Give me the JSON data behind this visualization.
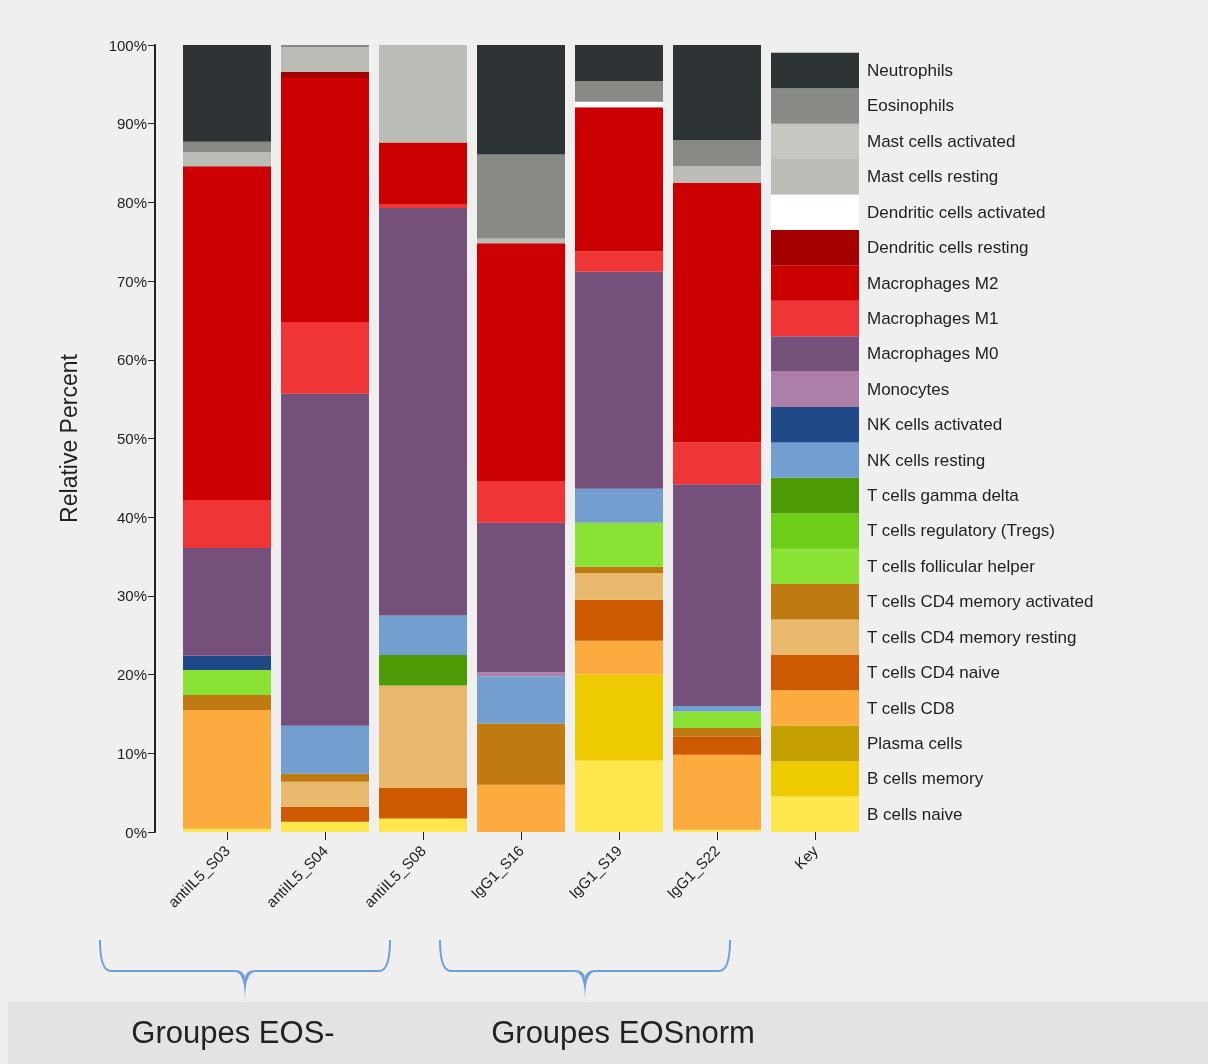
{
  "chart_data": {
    "type": "bar",
    "stacked": true,
    "ylabel": "Relative Percent",
    "categories": [
      "antiIL5_S03",
      "antiIL5_S04",
      "antiIL5_S08",
      "IgG1_S16",
      "IgG1_S19",
      "IgG1_S22",
      "Key"
    ],
    "ylim": [
      0,
      100
    ],
    "yticks": [
      {
        "value": 0,
        "label": "0%"
      },
      {
        "value": 10,
        "label": "10%"
      },
      {
        "value": 20,
        "label": "20%"
      },
      {
        "value": 30,
        "label": "30%"
      },
      {
        "value": 40,
        "label": "40%"
      },
      {
        "value": 50,
        "label": "50%"
      },
      {
        "value": 60,
        "label": "60%"
      },
      {
        "value": 70,
        "label": "70%"
      },
      {
        "value": 80,
        "label": "80%"
      },
      {
        "value": 90,
        "label": "90%"
      },
      {
        "value": 100,
        "label": "100%"
      }
    ],
    "grid": false,
    "legend": "right",
    "annotations": [
      "Groupes EOS-",
      "Groupes EOSnorm"
    ],
    "series": [
      {
        "name": "B cells naive",
        "color": "#fde74c",
        "values": [
          0.4,
          1.3,
          1.7,
          null,
          9.1,
          0.3,
          4.5
        ]
      },
      {
        "name": "B cells memory",
        "color": "#eecb00",
        "values": [
          null,
          null,
          null,
          null,
          10.9,
          null,
          4.5
        ]
      },
      {
        "name": "Plasma cells",
        "color": "#c4a000",
        "values": [
          null,
          null,
          null,
          null,
          null,
          null,
          4.5
        ]
      },
      {
        "name": "T cells CD8",
        "color": "#fcab3f",
        "values": [
          15.1,
          null,
          null,
          6.0,
          4.3,
          9.5,
          4.5
        ]
      },
      {
        "name": "T cells CD4 naive",
        "color": "#cd5a00",
        "values": [
          null,
          1.9,
          3.9,
          null,
          5.2,
          2.3,
          4.5
        ]
      },
      {
        "name": "T cells CD4 memory resting",
        "color": "#e8b86c",
        "values": [
          null,
          3.2,
          13.0,
          null,
          3.4,
          null,
          4.5
        ]
      },
      {
        "name": "T cells CD4 memory activated",
        "color": "#c07a12",
        "values": [
          1.9,
          1.0,
          null,
          7.8,
          0.8,
          1.1,
          4.5
        ]
      },
      {
        "name": "T cells follicular helper",
        "color": "#8ae234",
        "values": [
          3.2,
          null,
          null,
          null,
          5.6,
          2.1,
          4.5
        ]
      },
      {
        "name": "T cells regulatory (Tregs)",
        "color": "#6dcf1a",
        "values": [
          null,
          null,
          null,
          null,
          null,
          null,
          4.5
        ]
      },
      {
        "name": "T cells gamma delta",
        "color": "#4e9a06",
        "values": [
          null,
          null,
          3.9,
          null,
          null,
          null,
          4.5
        ]
      },
      {
        "name": "NK cells resting",
        "color": "#729fcf",
        "values": [
          null,
          6.1,
          5.0,
          6.0,
          4.3,
          0.7,
          4.5
        ]
      },
      {
        "name": "NK cells activated",
        "color": "#204a87",
        "values": [
          1.8,
          null,
          null,
          null,
          null,
          null,
          4.5
        ]
      },
      {
        "name": "Monocytes",
        "color": "#ad7fa8",
        "values": [
          null,
          null,
          null,
          0.5,
          null,
          null,
          4.5
        ]
      },
      {
        "name": "Macrophages M0",
        "color": "#75507b",
        "values": [
          13.7,
          42.2,
          51.8,
          19.0,
          27.6,
          28.2,
          4.5
        ]
      },
      {
        "name": "Macrophages M1",
        "color": "#ef3535",
        "values": [
          6.1,
          9.1,
          0.5,
          5.3,
          2.6,
          5.3,
          4.5
        ]
      },
      {
        "name": "Macrophages M2",
        "color": "#cc0000",
        "values": [
          42.4,
          31.0,
          7.8,
          30.2,
          18.3,
          33.0,
          4.5
        ]
      },
      {
        "name": "Dendritic cells resting",
        "color": "#a40000",
        "values": [
          null,
          0.8,
          null,
          null,
          null,
          null,
          4.5
        ]
      },
      {
        "name": "Dendritic cells activated",
        "color": "#ffffff",
        "values": [
          null,
          null,
          null,
          null,
          0.7,
          null,
          4.5
        ]
      },
      {
        "name": "Mast cells resting",
        "color": "#babdb6",
        "values": [
          1.8,
          3.1,
          12.4,
          0.6,
          null,
          2.1,
          4.5
        ]
      },
      {
        "name": "Mast cells activated",
        "color": "#c4c6bf",
        "values": [
          null,
          null,
          null,
          null,
          null,
          null,
          4.5
        ]
      },
      {
        "name": "Eosinophils",
        "color": "#888a85",
        "values": [
          1.3,
          0.3,
          null,
          10.7,
          2.6,
          3.3,
          4.5
        ]
      },
      {
        "name": "Neutrophils",
        "color": "#2e3436",
        "values": [
          12.3,
          null,
          null,
          13.9,
          4.6,
          12.1,
          4.5
        ]
      }
    ]
  }
}
